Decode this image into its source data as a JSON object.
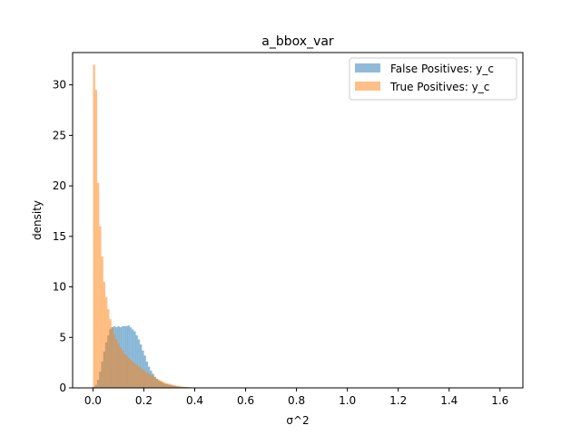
{
  "chart_data": {
    "type": "bar",
    "title": "a_bbox_var",
    "xlabel": "σ^2",
    "ylabel": "density",
    "xlim": [
      -0.08,
      1.69
    ],
    "ylim": [
      0,
      33.2
    ],
    "xticks": [
      0.0,
      0.2,
      0.4,
      0.6,
      0.8,
      1.0,
      1.2,
      1.4,
      1.6
    ],
    "xtick_labels": [
      "0.0",
      "0.2",
      "0.4",
      "0.6",
      "0.8",
      "1.0",
      "1.2",
      "1.4",
      "1.6"
    ],
    "yticks": [
      0,
      5,
      10,
      15,
      20,
      25,
      30
    ],
    "ytick_labels": [
      "0",
      "5",
      "10",
      "15",
      "20",
      "25",
      "30"
    ],
    "bin_width": 0.008,
    "legend_position": "upper right",
    "grid": false,
    "series": [
      {
        "name": "False Positives: y_c",
        "color": "#1f77b4",
        "alpha": 0.5,
        "bin_start": 0.0,
        "values": [
          0.1,
          0.3,
          0.8,
          1.6,
          2.6,
          3.6,
          4.5,
          5.2,
          5.8,
          6.0,
          6.1,
          6.0,
          6.1,
          6.0,
          6.1,
          6.1,
          6.1,
          6.2,
          6.0,
          5.8,
          5.6,
          5.2,
          4.8,
          4.3,
          3.7,
          3.2,
          2.6,
          2.1,
          1.7,
          1.4,
          1.1,
          0.9,
          0.7,
          0.6,
          0.5,
          0.4,
          0.35,
          0.3,
          0.25,
          0.2,
          0.17,
          0.14,
          0.12,
          0.1,
          0.09,
          0.08,
          0.07,
          0.06,
          0.05,
          0.04,
          0.04,
          0.03,
          0.03,
          0.03,
          0.02,
          0.02,
          0.02,
          0.02,
          0.02,
          0.02,
          0.01,
          0.01,
          0.01,
          0.01,
          0.01,
          0.01,
          0.01,
          0.01,
          0.01,
          0.01,
          0.01,
          0.01,
          0.01,
          0.01,
          0.01,
          0.01,
          0.01,
          0.01,
          0.01,
          0.01,
          0.01,
          0.01,
          0.01,
          0.01,
          0.01,
          0.01,
          0.01,
          0.01,
          0.01,
          0.01,
          0.01,
          0.01,
          0.01,
          0.01,
          0.01,
          0.01,
          0.01,
          0.01,
          0.01,
          0.01,
          0.01,
          0.01,
          0.01,
          0.01,
          0.01,
          0.01,
          0.01,
          0.01,
          0.01,
          0.01,
          0.01,
          0.01,
          0.01,
          0.01,
          0.01,
          0.01,
          0.01,
          0.01,
          0.01,
          0.01,
          0.01,
          0.01,
          0.01,
          0.01,
          0.01,
          0.01,
          0.01,
          0.01,
          0.01,
          0.01,
          0.01,
          0.01,
          0.01,
          0.01,
          0.01,
          0.01,
          0.01,
          0.01,
          0.01,
          0.01,
          0.01,
          0.01,
          0.01,
          0.01,
          0.01,
          0.01,
          0.01,
          0.01,
          0.01,
          0.01,
          0.01,
          0.01,
          0.01,
          0.01,
          0.01,
          0.01,
          0.01,
          0.01,
          0.01,
          0.01,
          0.01,
          0.01,
          0.01,
          0.01,
          0.01,
          0.01,
          0.01,
          0.01,
          0.01,
          0.01,
          0.01,
          0.01,
          0.01,
          0.01,
          0.01,
          0.01,
          0.01,
          0.01,
          0.01,
          0.01,
          0.01,
          0.01,
          0.01,
          0.01,
          0.01,
          0.01,
          0.01,
          0.01,
          0.01,
          0.01,
          0.01,
          0.01,
          0.01,
          0.01,
          0.01,
          0.01,
          0.01,
          0.01,
          0.01,
          0.01,
          0.01,
          0.01,
          0.01
        ]
      },
      {
        "name": "True Positives: y_c",
        "color": "#ff7f0e",
        "alpha": 0.5,
        "bin_start": 0.0,
        "values": [
          32.0,
          29.5,
          20.3,
          16.0,
          13.0,
          10.5,
          9.0,
          7.8,
          6.8,
          6.0,
          5.3,
          4.8,
          4.4,
          4.0,
          3.7,
          3.4,
          3.2,
          3.0,
          2.8,
          2.6,
          2.4,
          2.3,
          2.1,
          2.0,
          1.8,
          1.7,
          1.5,
          1.4,
          1.3,
          1.2,
          1.0,
          0.9,
          0.8,
          0.7,
          0.6,
          0.5,
          0.45,
          0.4,
          0.35,
          0.3,
          0.25,
          0.2,
          0.17,
          0.14,
          0.12,
          0.1,
          0.08,
          0.06,
          0.05,
          0.04,
          0.03,
          0.02,
          0.02,
          0.01,
          0.01
        ]
      }
    ]
  }
}
